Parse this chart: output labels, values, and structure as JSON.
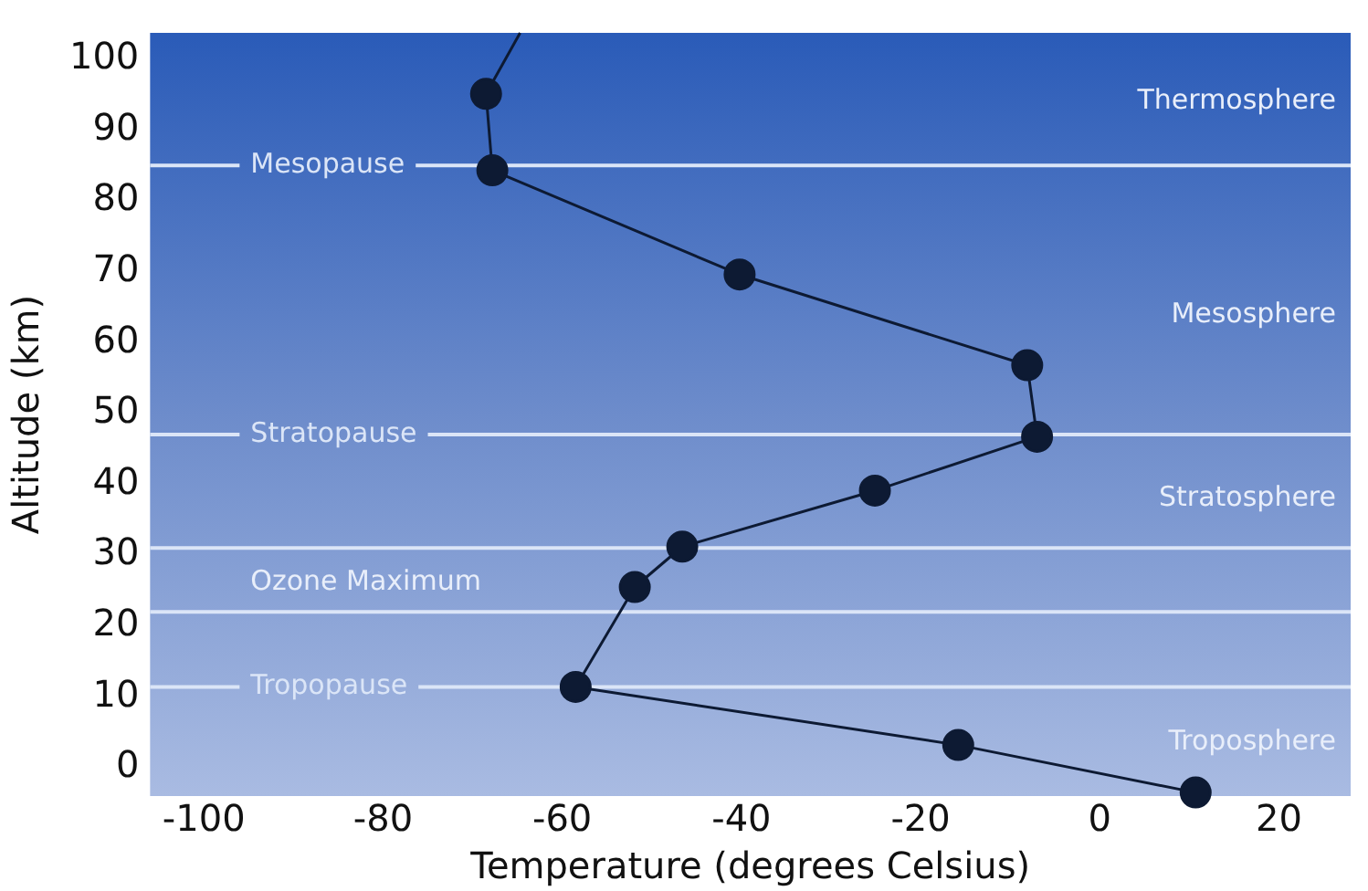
{
  "chart_data": {
    "type": "line",
    "xlabel": "Temperature (degrees Celsius)",
    "ylabel": "Altitude (km)",
    "series": [
      {
        "color": "#0d1a33",
        "x": [
          10.7,
          -15.8,
          -58.5,
          -51.9,
          -46.6,
          -25.1,
          -7,
          -8.1,
          -40.2,
          -67.8,
          -68.5,
          -64.7
        ],
        "values": [
          -3.5,
          3.2,
          11.4,
          25.5,
          31.2,
          39.1,
          46.7,
          56.8,
          69.6,
          84.3,
          95.1,
          103.7
        ]
      }
    ],
    "xlim": [
      -106,
      28
    ],
    "ylim": [
      -4,
      103.7
    ],
    "xticks": [
      -100,
      -80,
      -60,
      -40,
      -20,
      0,
      20
    ],
    "yticks": [
      0,
      10,
      20,
      30,
      40,
      50,
      60,
      70,
      80,
      90,
      100
    ],
    "ref_lines": [
      {
        "axis": "y",
        "value": 85,
        "label": "Mesopause",
        "color": "#dbe5f7"
      },
      {
        "axis": "y",
        "value": 47,
        "label": "Stratopause",
        "color": "#dbe5f7"
      },
      {
        "axis": "y",
        "value": 31,
        "color": "#dbe5f7"
      },
      {
        "axis": "y",
        "value": 22,
        "color": "#dbe5f7"
      },
      {
        "axis": "y",
        "value": 11.4,
        "label": "Tropopause",
        "color": "#dbe5f7"
      }
    ],
    "annotations": [
      "Thermosphere",
      "Mesosphere",
      "Stratosphere",
      "Ozone Maximum",
      "Troposphere"
    ],
    "marker": "circle",
    "line_style": "solid",
    "grid": false,
    "legend": false
  }
}
